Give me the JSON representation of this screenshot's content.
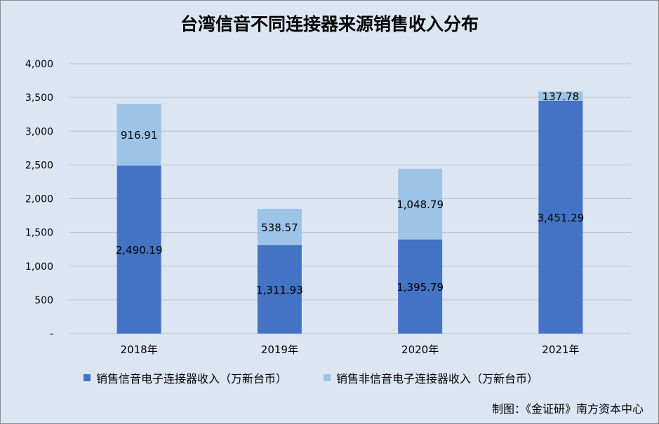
{
  "title": "台湾信音不同连接器来源销售收入分布",
  "credit": "制图：《金证研》南方资本中心",
  "colors": {
    "background": "#dce6f2",
    "series_primary": "#4472c4",
    "series_secondary": "#9dc3e6",
    "grid": "#bfbfbf"
  },
  "chart_data": {
    "type": "bar",
    "stacked": true,
    "categories": [
      "2018年",
      "2019年",
      "2020年",
      "2021年"
    ],
    "series": [
      {
        "name": "销售信音电子连接器收入（万新台币）",
        "values": [
          2490.19,
          1311.93,
          1395.79,
          3451.29
        ],
        "labels": [
          "2,490.19",
          "1,311.93",
          "1,395.79",
          "3,451.29"
        ]
      },
      {
        "name": "销售非信音电子连接器收入（万新台币）",
        "values": [
          916.91,
          538.57,
          1048.79,
          137.78
        ],
        "labels": [
          "916.91",
          "538.57",
          "1,048.79",
          "137.78"
        ]
      }
    ],
    "ylim": [
      0,
      4000
    ],
    "yticks": [
      0,
      500,
      1000,
      1500,
      2000,
      2500,
      3000,
      3500,
      4000
    ],
    "ytick_labels": [
      "-",
      "500",
      "1,000",
      "1,500",
      "2,000",
      "2,500",
      "3,000",
      "3,500",
      "4,000"
    ],
    "grid": true,
    "legend_position": "bottom"
  }
}
